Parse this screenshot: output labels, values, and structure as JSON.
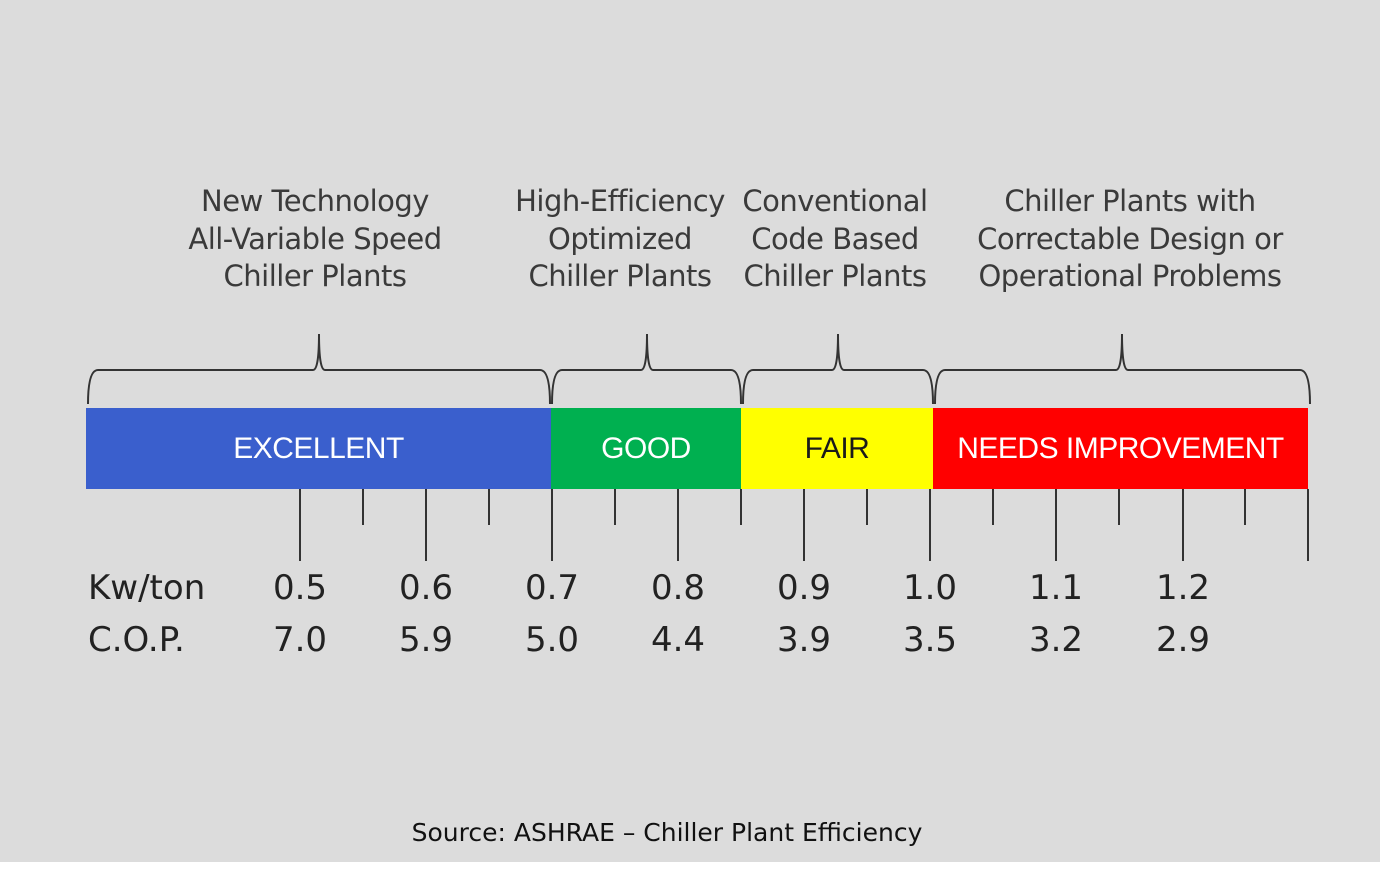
{
  "categories": [
    {
      "label": "New Technology\nAll-Variable Speed\nChiller Plants"
    },
    {
      "label": "High-Efficiency\nOptimized\nChiller Plants"
    },
    {
      "label": "Conventional\nCode Based\nChiller Plants"
    },
    {
      "label": "Chiller Plants with\nCorrectable Design or\nOperational Problems"
    }
  ],
  "segments": [
    {
      "label": "EXCELLENT",
      "color": "#3a5fcd",
      "text_color": "#ffffff"
    },
    {
      "label": "GOOD",
      "color": "#00b050",
      "text_color": "#ffffff"
    },
    {
      "label": "FAIR",
      "color": "#ffff00",
      "text_color": "#1a1a1a"
    },
    {
      "label": "NEEDS IMPROVEMENT",
      "color": "#ff0000",
      "text_color": "#ffffff"
    }
  ],
  "rows": {
    "kw_label": "Kw/ton",
    "cop_label": "C.O.P.",
    "kw_values": [
      "0.5",
      "0.6",
      "0.7",
      "0.8",
      "0.9",
      "1.0",
      "1.1",
      "1.2"
    ],
    "cop_values": [
      "7.0",
      "5.9",
      "5.0",
      "4.4",
      "3.9",
      "3.5",
      "3.2",
      "2.9"
    ]
  },
  "source": "Source: ASHRAE – Chiller Plant Efficiency"
}
